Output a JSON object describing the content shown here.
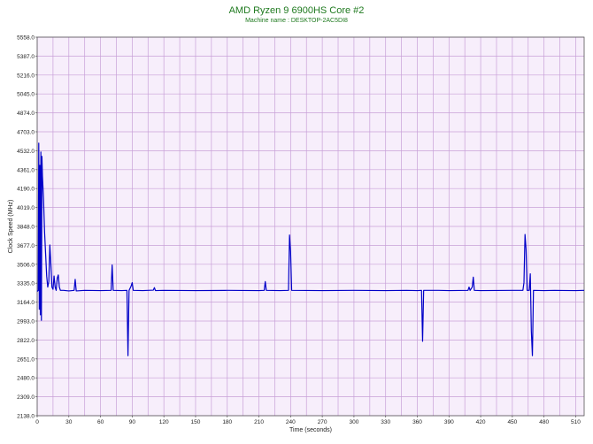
{
  "chart_data": {
    "type": "line",
    "title": "AMD Ryzen 9 6900HS Core #2",
    "subtitle": "Machine name : DESKTOP-2AC5DI8",
    "xlabel": "Time (seconds)",
    "ylabel": "Clock Speed (MHz)",
    "xlim": [
      0,
      518
    ],
    "ylim": [
      2138.0,
      5558.0
    ],
    "x_ticks": [
      0,
      30,
      60,
      90,
      120,
      150,
      180,
      210,
      240,
      270,
      300,
      330,
      360,
      390,
      420,
      450,
      480,
      510
    ],
    "y_ticks": [
      "2138.0",
      "2309.0",
      "2480.0",
      "2651.0",
      "2822.0",
      "2993.0",
      "3164.0",
      "3335.0",
      "3506.0",
      "3677.0",
      "3848.0",
      "4019.0",
      "4190.0",
      "4361.0",
      "4532.0",
      "4703.0",
      "4874.0",
      "5045.0",
      "5216.0",
      "5387.0",
      "5558.0"
    ],
    "grid": true,
    "colors": {
      "background": "#f7eefb",
      "grid": "#c8a0d8",
      "line": "#0000c8",
      "title": "#1f7a1f"
    },
    "series": [
      {
        "values": [
          [
            0,
            3260
          ],
          [
            1,
            3270
          ],
          [
            1.5,
            4600
          ],
          [
            2,
            3100
          ],
          [
            2.5,
            4400
          ],
          [
            3,
            3050
          ],
          [
            3.5,
            4520
          ],
          [
            4,
            3000
          ],
          [
            4.5,
            4480
          ],
          [
            5,
            4300
          ],
          [
            6,
            4100
          ],
          [
            7,
            3800
          ],
          [
            8,
            3600
          ],
          [
            9,
            3400
          ],
          [
            10,
            3300
          ],
          [
            11,
            3350
          ],
          [
            12,
            3680
          ],
          [
            13,
            3500
          ],
          [
            14,
            3300
          ],
          [
            15,
            3280
          ],
          [
            16,
            3400
          ],
          [
            17,
            3300
          ],
          [
            18,
            3270
          ],
          [
            19,
            3380
          ],
          [
            20,
            3410
          ],
          [
            21,
            3300
          ],
          [
            22,
            3270
          ],
          [
            25,
            3270
          ],
          [
            30,
            3265
          ],
          [
            35,
            3270
          ],
          [
            36,
            3370
          ],
          [
            37,
            3265
          ],
          [
            45,
            3270
          ],
          [
            60,
            3268
          ],
          [
            70,
            3270
          ],
          [
            71,
            3500
          ],
          [
            72,
            3270
          ],
          [
            80,
            3268
          ],
          [
            85,
            3270
          ],
          [
            86,
            2680
          ],
          [
            87,
            3270
          ],
          [
            89,
            3310
          ],
          [
            90,
            3340
          ],
          [
            91,
            3270
          ],
          [
            100,
            3268
          ],
          [
            110,
            3272
          ],
          [
            111,
            3295
          ],
          [
            112,
            3268
          ],
          [
            120,
            3270
          ],
          [
            150,
            3268
          ],
          [
            180,
            3270
          ],
          [
            210,
            3268
          ],
          [
            215,
            3270
          ],
          [
            216,
            3350
          ],
          [
            217,
            3270
          ],
          [
            230,
            3268
          ],
          [
            238,
            3270
          ],
          [
            239,
            3770
          ],
          [
            240,
            3620
          ],
          [
            241,
            3270
          ],
          [
            270,
            3268
          ],
          [
            300,
            3270
          ],
          [
            330,
            3268
          ],
          [
            350,
            3270
          ],
          [
            360,
            3268
          ],
          [
            364,
            3270
          ],
          [
            365,
            2810
          ],
          [
            366,
            3270
          ],
          [
            380,
            3270
          ],
          [
            390,
            3268
          ],
          [
            408,
            3270
          ],
          [
            409,
            3300
          ],
          [
            410,
            3270
          ],
          [
            412,
            3300
          ],
          [
            413,
            3390
          ],
          [
            414,
            3270
          ],
          [
            420,
            3268
          ],
          [
            450,
            3270
          ],
          [
            460,
            3270
          ],
          [
            461,
            3340
          ],
          [
            462,
            3775
          ],
          [
            463,
            3640
          ],
          [
            464,
            3270
          ],
          [
            466,
            3270
          ],
          [
            467,
            3420
          ],
          [
            468,
            2900
          ],
          [
            469,
            2680
          ],
          [
            470,
            3270
          ],
          [
            480,
            3268
          ],
          [
            490,
            3270
          ],
          [
            510,
            3268
          ],
          [
            518,
            3270
          ]
        ]
      }
    ]
  }
}
